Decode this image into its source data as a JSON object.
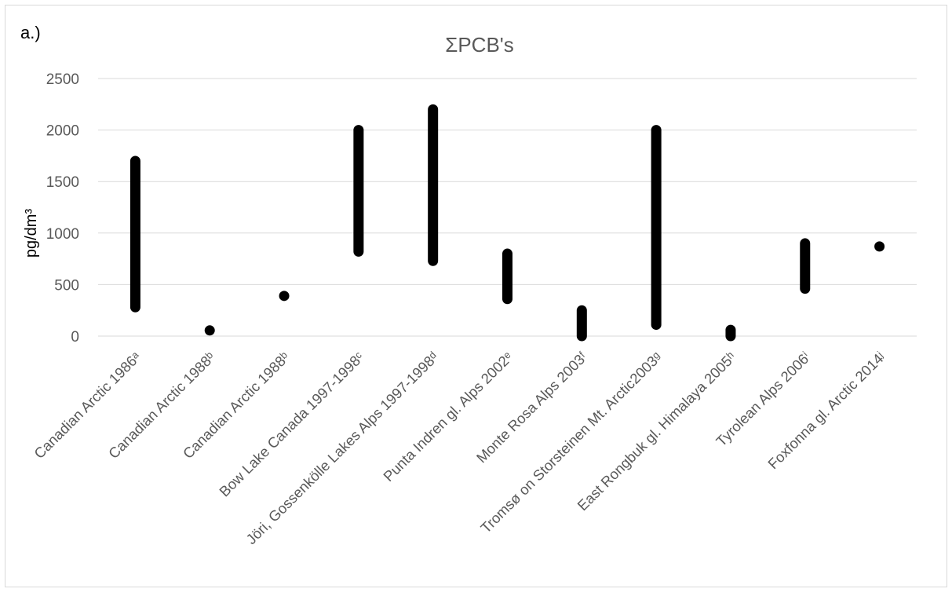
{
  "panel_label": "a.)",
  "chart_data": {
    "type": "range",
    "title": "ΣPCB's",
    "xlabel": "",
    "ylabel": "pg/dm³",
    "ylim": [
      0,
      2500
    ],
    "yticks": [
      0,
      500,
      1000,
      1500,
      2000,
      2500
    ],
    "grid": true,
    "categories": [
      "Canadian Arctic 1986ᵃ",
      "Canadian Arctic 1988ᵇ",
      "Canadian Arctic 1988ᵇ",
      "Bow Lake Canada 1997-1998ᶜ",
      "Jöri, Gossenkölle Lakes Alps 1997-1998ᵈ",
      "Punta Indren gl. Alps 2002ᵉ",
      "Monte Rosa Alps 2003ᶠ",
      "Tromsø on Storsteinen Mt. Arctic2003ᵍ",
      "East Rongbuk gl. Himalaya 2005ʰ",
      "Tyrolean Alps 2006ⁱ",
      "Foxfonna gl. Arctic 2014ʲ"
    ],
    "series": [
      {
        "low": [
          280,
          55,
          390,
          820,
          730,
          360,
          0,
          110,
          0,
          460,
          870
        ],
        "high": [
          1700,
          55,
          390,
          2000,
          2200,
          800,
          250,
          2000,
          60,
          900,
          870
        ]
      }
    ],
    "colors": {
      "marks": "#000000",
      "grid": "#d9d9d9",
      "text": "#595959",
      "axis_title": "#000000"
    }
  }
}
